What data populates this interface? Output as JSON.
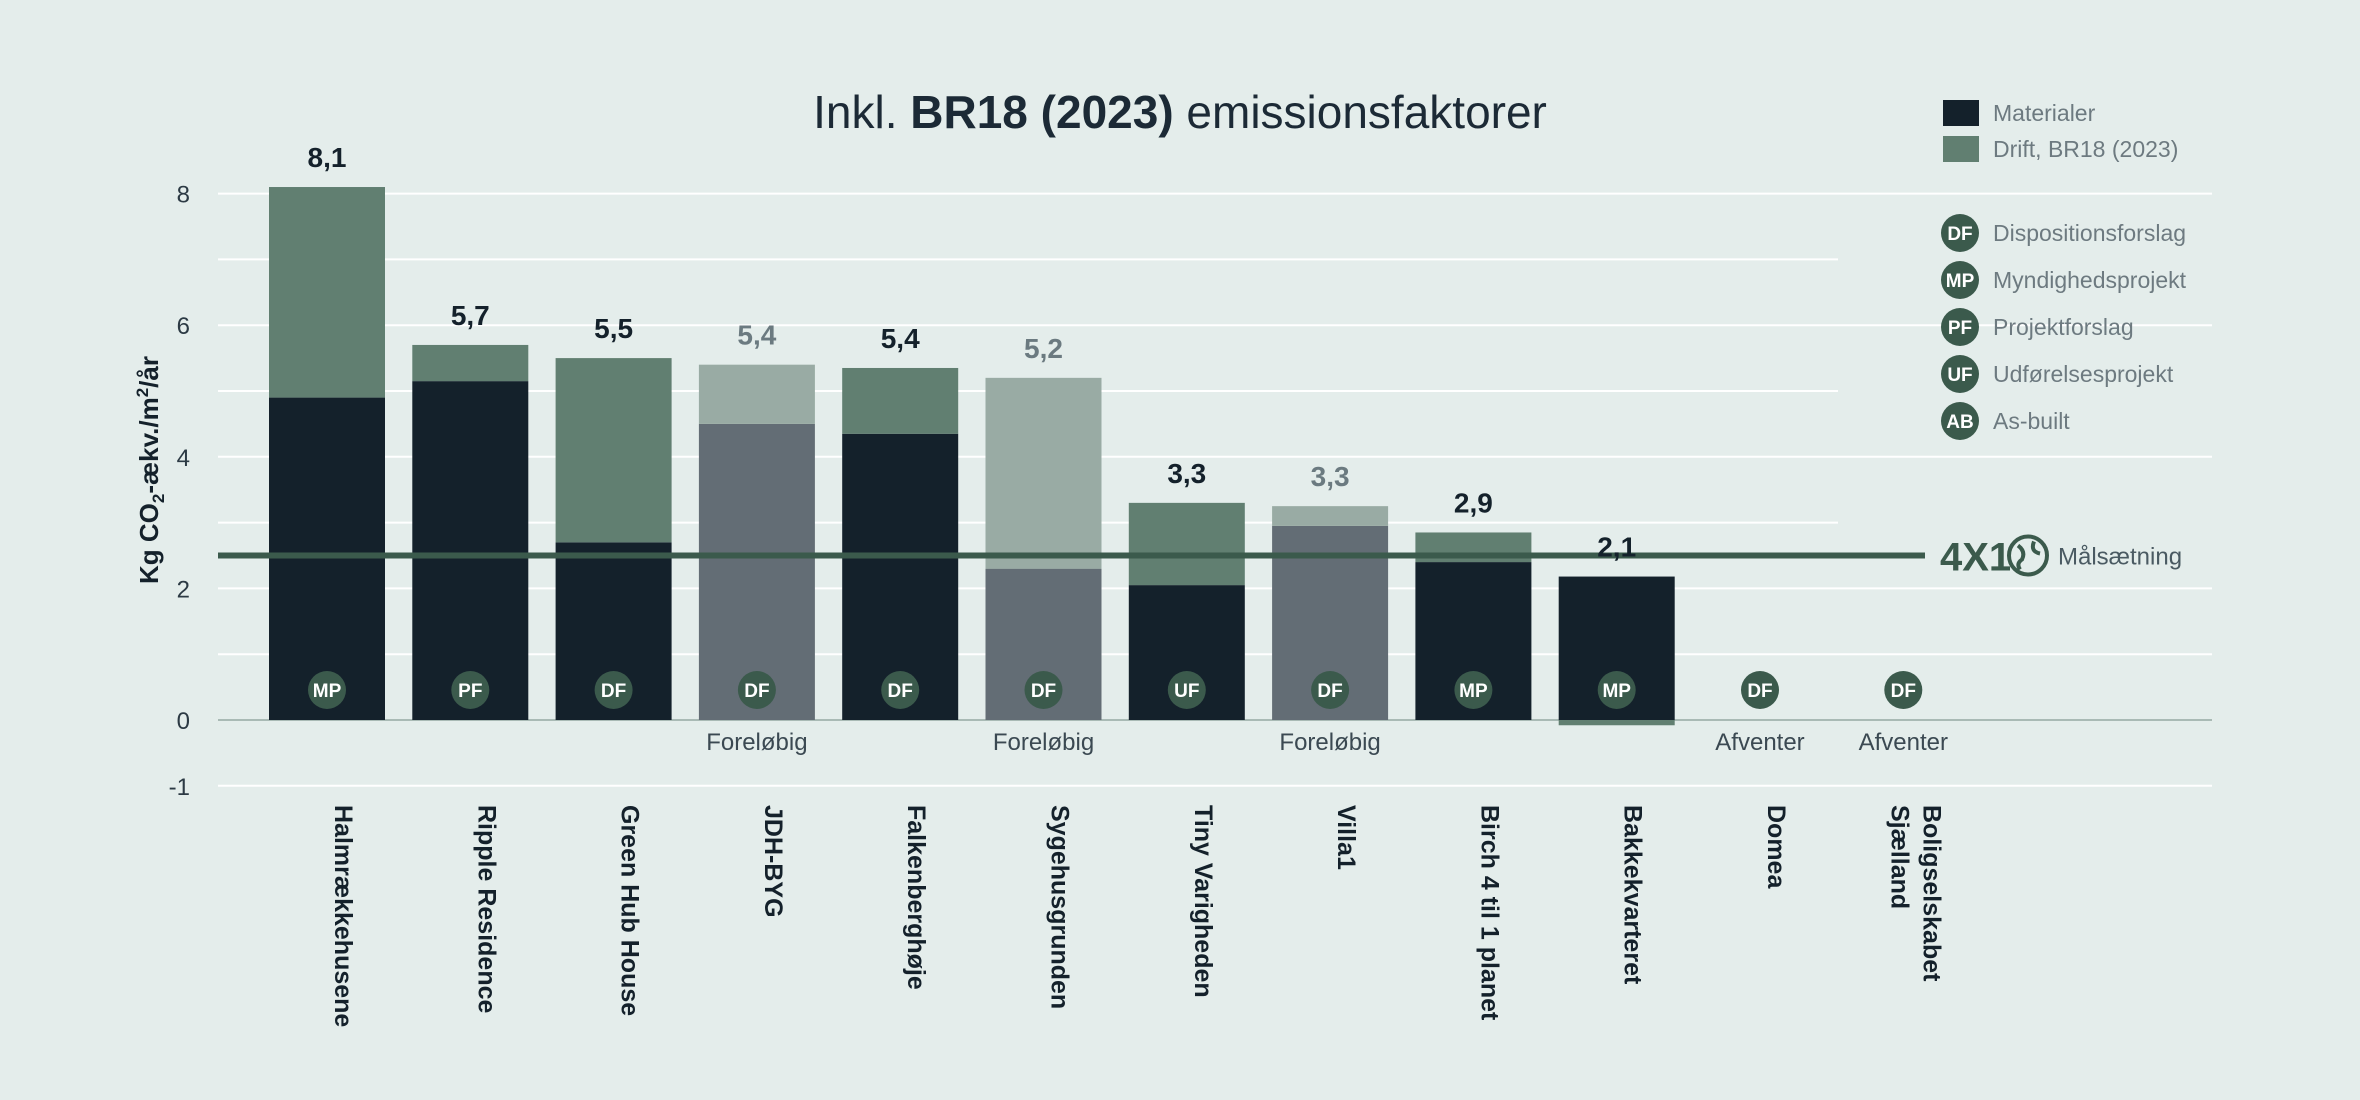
{
  "chart_data": {
    "type": "bar",
    "stacked": true,
    "title": {
      "prefix": "Inkl. ",
      "bold": "BR18 (2023)",
      "suffix": " emissionsfaktorer"
    },
    "ylabel": {
      "main": "Kg CO",
      "sub": "2",
      "middle": "-ækv./m",
      "sup": "2",
      "end": "/år"
    },
    "ylim": [
      -1,
      8
    ],
    "yticks": [
      {
        "value": 8,
        "label": "8"
      },
      {
        "value": 6,
        "label": "6"
      },
      {
        "value": 4,
        "label": "4"
      },
      {
        "value": 2,
        "label": "2"
      },
      {
        "value": 0,
        "label": "0"
      },
      {
        "value": -1,
        "label": "-1"
      }
    ],
    "grid": true,
    "legend_placement": "top-right",
    "series": [
      {
        "name": "Materialer",
        "color": "#14212b"
      },
      {
        "name": "Drift, BR18 (2023)",
        "color": "#617f71"
      }
    ],
    "preliminary_colors": {
      "materials": "#636d75",
      "operation": "#99aba4"
    },
    "categories": [
      {
        "name": "Halmrækkehusene",
        "materials": 4.9,
        "operation": 3.2,
        "total_label": "8,1",
        "phase": "MP",
        "note": "",
        "preliminary": false
      },
      {
        "name": "Ripple Residence",
        "materials": 5.15,
        "operation": 0.55,
        "total_label": "5,7",
        "phase": "PF",
        "note": "",
        "preliminary": false
      },
      {
        "name": "Green Hub House",
        "materials": 2.7,
        "operation": 2.8,
        "total_label": "5,5",
        "phase": "DF",
        "note": "",
        "preliminary": false
      },
      {
        "name": "JDH-BYG",
        "materials": 4.5,
        "operation": 0.9,
        "total_label": "5,4",
        "phase": "DF",
        "note": "Foreløbig",
        "preliminary": true
      },
      {
        "name": "Falkenberghøje",
        "materials": 4.35,
        "operation": 1.0,
        "total_label": "5,4",
        "phase": "DF",
        "note": "",
        "preliminary": false
      },
      {
        "name": "Sygehusgrunden",
        "materials": 2.3,
        "operation": 2.9,
        "total_label": "5,2",
        "phase": "DF",
        "note": "Foreløbig",
        "preliminary": true
      },
      {
        "name": "Tiny Varigheden",
        "materials": 2.05,
        "operation": 1.25,
        "total_label": "3,3",
        "phase": "UF",
        "note": "",
        "preliminary": false
      },
      {
        "name": "Villa1",
        "materials": 2.95,
        "operation": 0.3,
        "total_label": "3,3",
        "phase": "DF",
        "note": "Foreløbig",
        "preliminary": true
      },
      {
        "name": "Birch 4 til 1 planet",
        "materials": 2.4,
        "operation": 0.45,
        "total_label": "2,9",
        "phase": "MP",
        "note": "",
        "preliminary": false
      },
      {
        "name": "Bakkekvarteret",
        "materials": 2.18,
        "operation": -0.08,
        "total_label": "2,1",
        "phase": "MP",
        "note": "",
        "preliminary": false
      },
      {
        "name": "Domea",
        "materials": null,
        "operation": null,
        "total_label": "",
        "phase": "DF",
        "note": "Afventer",
        "preliminary": false
      },
      {
        "name": "Boligselskabet Sjælland",
        "materials": null,
        "operation": null,
        "total_label": "",
        "phase": "DF",
        "note": "Afventer",
        "preliminary": false
      }
    ],
    "phases": [
      {
        "code": "DF",
        "label": "Dispositionsforslag"
      },
      {
        "code": "MP",
        "label": "Myndighedsprojekt"
      },
      {
        "code": "PF",
        "label": "Projektforslag"
      },
      {
        "code": "UF",
        "label": "Udførelsesprojekt"
      },
      {
        "code": "AB",
        "label": "As-built"
      }
    ],
    "target": {
      "value": 2.5,
      "label": "Målsætning",
      "logo_text": "4X1",
      "color": "#3b5a4c"
    }
  }
}
